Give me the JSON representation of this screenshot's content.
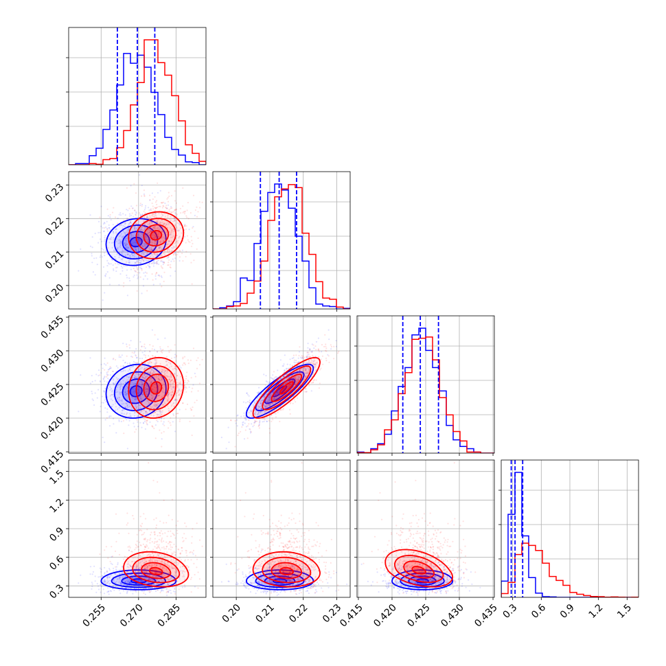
{
  "chart_data": {
    "type": "corner",
    "title": "",
    "grid": true,
    "parameters": [
      {
        "range": [
          0.242,
          0.297
        ],
        "ticks": [
          0.255,
          0.27,
          0.285
        ],
        "tick_labels": [
          "0.255",
          "0.270",
          "0.285"
        ]
      },
      {
        "range": [
          0.193,
          0.234
        ],
        "ticks": [
          0.2,
          0.21,
          0.22,
          0.23
        ],
        "tick_labels": [
          "0.20",
          "0.21",
          "0.22",
          "0.23"
        ]
      },
      {
        "range": [
          0.4148,
          0.4352
        ],
        "ticks": [
          0.415,
          0.42,
          0.425,
          0.43,
          0.435
        ],
        "tick_labels": [
          "0.415",
          "0.420",
          "0.425",
          "0.430",
          "0.435"
        ]
      },
      {
        "range": [
          0.18,
          1.62
        ],
        "ticks": [
          0.3,
          0.6,
          0.9,
          1.2,
          1.5
        ],
        "tick_labels": [
          "0.3",
          "0.6",
          "0.9",
          "1.2",
          "1.5"
        ]
      }
    ],
    "series": [
      {
        "name": "",
        "color": "#0000ff",
        "means": [
          0.269,
          0.2125,
          0.4243,
          0.36
        ],
        "sd": [
          0.0075,
          0.0052,
          0.0026,
          0.075
        ],
        "hist_bins": 20
      },
      {
        "name": "",
        "color": "#ff0000",
        "means": [
          0.277,
          0.2155,
          0.4245,
          0.52
        ],
        "sd": [
          0.0072,
          0.0054,
          0.0027,
          0.17
        ],
        "hist_bins": 20
      }
    ],
    "quantile_lines": {
      "color": "#0000ff",
      "values": [
        [
          0.2615,
          0.2695,
          0.2765
        ],
        [
          0.2072,
          0.2128,
          0.218
        ],
        [
          0.4216,
          0.4242,
          0.4269
        ],
        [
          0.285,
          0.325,
          0.405
        ]
      ]
    },
    "contours": {
      "blue": [
        {
          "pair": [
            0,
            1
          ],
          "center": [
            0.269,
            0.213
          ],
          "radii": [
            0.012,
            0.007
          ],
          "corr": 0.1
        },
        {
          "pair": [
            0,
            2
          ],
          "center": [
            0.269,
            0.424
          ],
          "radii": [
            0.012,
            0.004
          ],
          "corr": 0.1
        },
        {
          "pair": [
            1,
            2
          ],
          "center": [
            0.213,
            0.424
          ],
          "radii": [
            0.01,
            0.004
          ],
          "corr": 0.85
        },
        {
          "pair": [
            0,
            3
          ],
          "center": [
            0.27,
            0.35
          ],
          "radii": [
            0.015,
            0.09
          ],
          "corr": 0.0
        },
        {
          "pair": [
            1,
            3
          ],
          "center": [
            0.213,
            0.35
          ],
          "radii": [
            0.01,
            0.09
          ],
          "corr": 0.0
        },
        {
          "pair": [
            2,
            3
          ],
          "center": [
            0.4245,
            0.35
          ],
          "radii": [
            0.0045,
            0.09
          ],
          "corr": 0.0
        }
      ],
      "red": [
        {
          "pair": [
            0,
            1
          ],
          "center": [
            0.277,
            0.215
          ],
          "radii": [
            0.011,
            0.007
          ],
          "corr": 0.1
        },
        {
          "pair": [
            0,
            2
          ],
          "center": [
            0.277,
            0.4245
          ],
          "radii": [
            0.011,
            0.0045
          ],
          "corr": 0.1
        },
        {
          "pair": [
            1,
            2
          ],
          "center": [
            0.215,
            0.4245
          ],
          "radii": [
            0.01,
            0.0045
          ],
          "corr": 0.85
        },
        {
          "pair": [
            0,
            3
          ],
          "center": [
            0.277,
            0.45
          ],
          "radii": [
            0.013,
            0.16
          ],
          "corr": -0.2
        },
        {
          "pair": [
            1,
            3
          ],
          "center": [
            0.215,
            0.45
          ],
          "radii": [
            0.01,
            0.16
          ],
          "corr": -0.1
        },
        {
          "pair": [
            2,
            3
          ],
          "center": [
            0.424,
            0.46
          ],
          "radii": [
            0.005,
            0.17
          ],
          "corr": -0.4
        }
      ]
    }
  }
}
